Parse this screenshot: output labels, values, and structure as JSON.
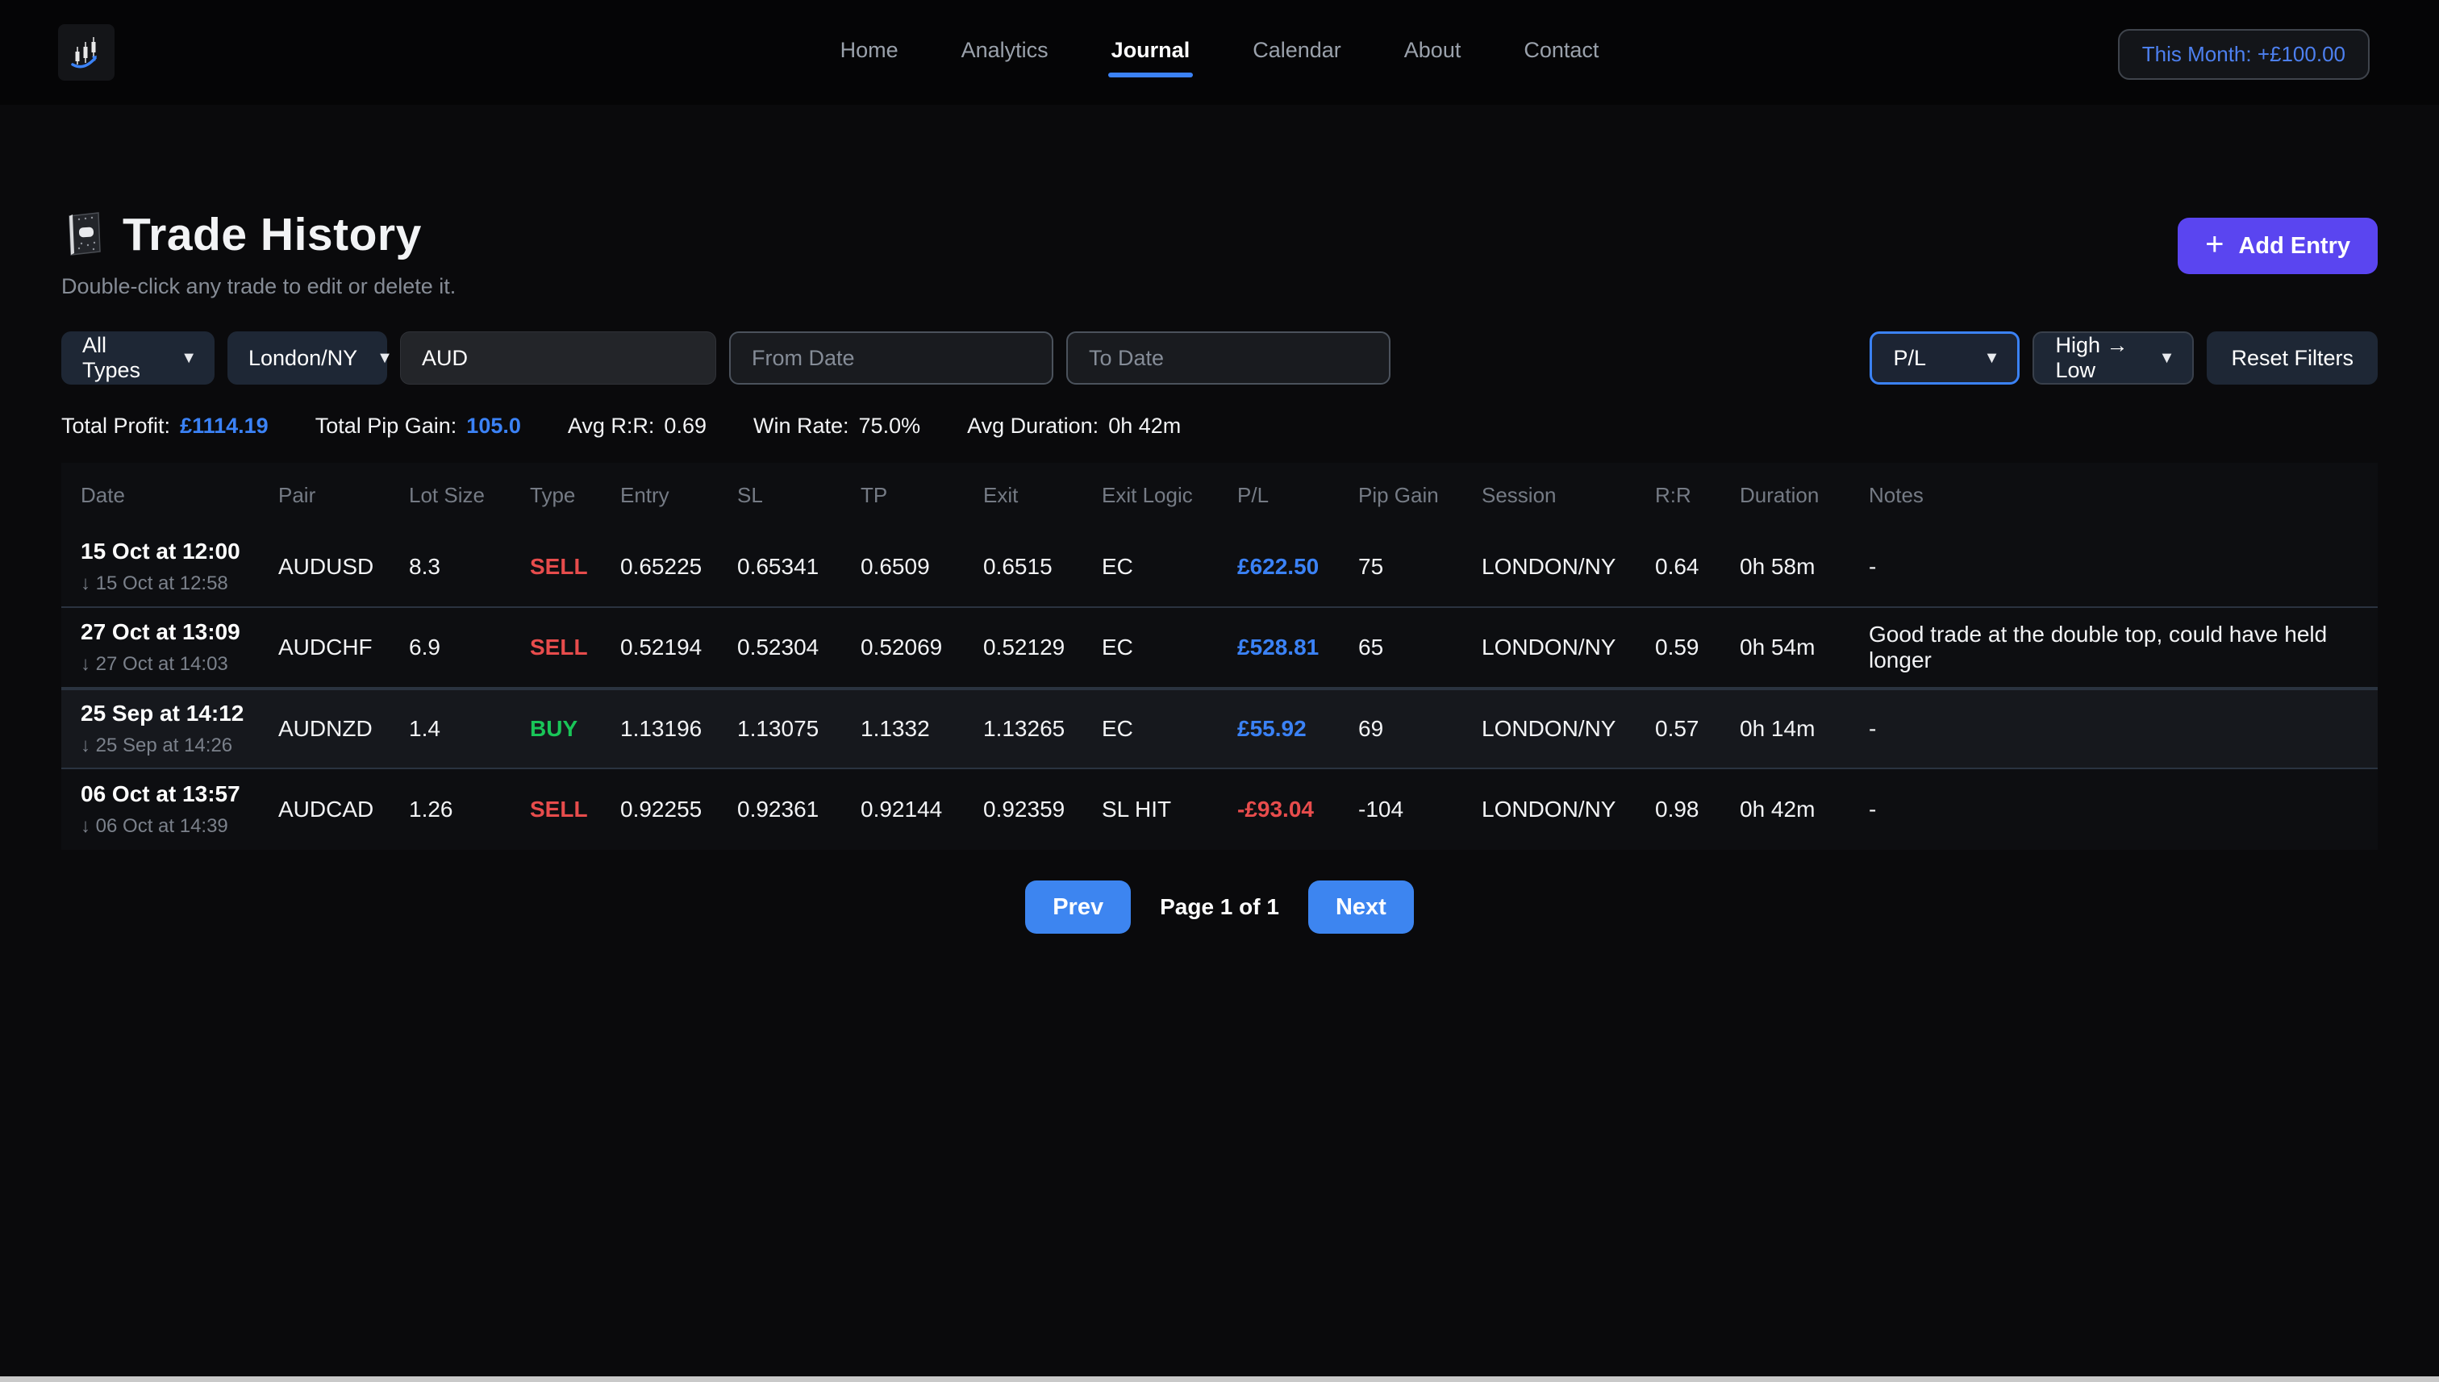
{
  "nav": {
    "logo_icon": "candlestick-chart-logo",
    "links": [
      {
        "label": "Home",
        "active": false
      },
      {
        "label": "Analytics",
        "active": false
      },
      {
        "label": "Journal",
        "active": true
      },
      {
        "label": "Calendar",
        "active": false
      },
      {
        "label": "About",
        "active": false
      },
      {
        "label": "Contact",
        "active": false
      }
    ],
    "month_badge": "This Month: +£100.00"
  },
  "header": {
    "title": "Trade History",
    "title_icon": "notebook-icon",
    "subtitle": "Double-click any trade to edit or delete it.",
    "add_entry_label": "Add Entry",
    "add_entry_icon": "plus-icon"
  },
  "filters": {
    "type_selected": "All Types",
    "session_selected": "London/NY",
    "pair_value": "AUD",
    "from_placeholder": "From Date",
    "to_placeholder": "To Date",
    "sort_field_selected": "P/L",
    "sort_dir_selected": "High → Low",
    "reset_label": "Reset Filters",
    "dropdown_icon": "chevron-down-icon",
    "dropdown_glyph": "▼"
  },
  "stats": [
    {
      "label": "Total Profit:",
      "value": "£1114.19",
      "highlight": true
    },
    {
      "label": "Total Pip Gain:",
      "value": "105.0",
      "highlight": true
    },
    {
      "label": "Avg R:R:",
      "value": "0.69",
      "highlight": false
    },
    {
      "label": "Win Rate:",
      "value": "75.0%",
      "highlight": false
    },
    {
      "label": "Avg Duration:",
      "value": "0h 42m",
      "highlight": false
    }
  ],
  "table": {
    "columns": [
      "Date",
      "Pair",
      "Lot Size",
      "Type",
      "Entry",
      "SL",
      "TP",
      "Exit",
      "Exit Logic",
      "P/L",
      "Pip Gain",
      "Session",
      "R:R",
      "Duration",
      "Notes"
    ],
    "keys": [
      "date",
      "pair",
      "lot",
      "type",
      "entry",
      "sl",
      "tp",
      "exit",
      "exit_logic",
      "pl",
      "pip",
      "session",
      "rr",
      "duration",
      "notes"
    ],
    "rows": [
      {
        "date": "15 Oct at 12:00",
        "date_sub": "↓ 15 Oct at 12:58",
        "pair": "AUDUSD",
        "lot": "8.3",
        "type": "SELL",
        "entry": "0.65225",
        "sl": "0.65341",
        "tp": "0.6509",
        "exit": "0.6515",
        "exit_logic": "EC",
        "pl": "£622.50",
        "pip": "75",
        "session": "LONDON/NY",
        "rr": "0.64",
        "duration": "0h 58m",
        "notes": "-",
        "highlighted": false
      },
      {
        "date": "27 Oct at 13:09",
        "date_sub": "↓ 27 Oct at 14:03",
        "pair": "AUDCHF",
        "lot": "6.9",
        "type": "SELL",
        "entry": "0.52194",
        "sl": "0.52304",
        "tp": "0.52069",
        "exit": "0.52129",
        "exit_logic": "EC",
        "pl": "£528.81",
        "pip": "65",
        "session": "LONDON/NY",
        "rr": "0.59",
        "duration": "0h 54m",
        "notes": "Good trade at the double top, could have held longer",
        "highlighted": false
      },
      {
        "date": "25 Sep at 14:12",
        "date_sub": "↓ 25 Sep at 14:26",
        "pair": "AUDNZD",
        "lot": "1.4",
        "type": "BUY",
        "entry": "1.13196",
        "sl": "1.13075",
        "tp": "1.1332",
        "exit": "1.13265",
        "exit_logic": "EC",
        "pl": "£55.92",
        "pip": "69",
        "session": "LONDON/NY",
        "rr": "0.57",
        "duration": "0h 14m",
        "notes": "-",
        "highlighted": true
      },
      {
        "date": "06 Oct at 13:57",
        "date_sub": "↓ 06 Oct at 14:39",
        "pair": "AUDCAD",
        "lot": "1.26",
        "type": "SELL",
        "entry": "0.92255",
        "sl": "0.92361",
        "tp": "0.92144",
        "exit": "0.92359",
        "exit_logic": "SL HIT",
        "pl": "-£93.04",
        "pip": "-104",
        "session": "LONDON/NY",
        "rr": "0.98",
        "duration": "0h 42m",
        "notes": "-",
        "highlighted": false
      }
    ]
  },
  "pagination": {
    "prev_label": "Prev",
    "page_label": "Page 1 of 1",
    "next_label": "Next"
  },
  "colors": {
    "accent_blue": "#3b82f6",
    "accent_violet": "#5a45f0",
    "sell_red": "#e74c4c",
    "buy_green": "#19c558",
    "badge_blue": "#4d80f0"
  }
}
